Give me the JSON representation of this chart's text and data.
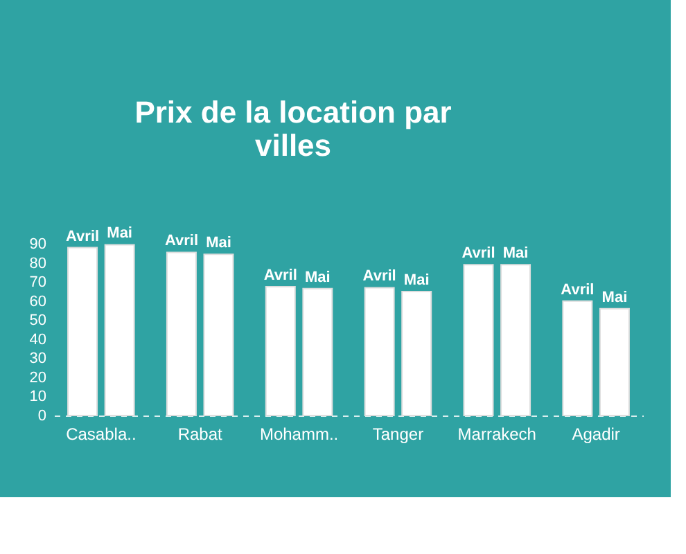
{
  "chart_data": {
    "type": "bar",
    "title": "Prix de la location par villes",
    "categories": [
      "Casabla..",
      "Rabat",
      "Mohamm..",
      "Tanger",
      "Marrakech",
      "Agadir"
    ],
    "series": [
      {
        "name": "Avril",
        "color": "#ffffff",
        "values": [
          88,
          85.5,
          67.5,
          67,
          79,
          60
        ]
      },
      {
        "name": "Mai",
        "color": "#ffffff",
        "values": [
          89.5,
          84.5,
          66.5,
          65,
          79,
          56
        ]
      }
    ],
    "ylim": [
      0,
      90
    ],
    "yticks": [
      0,
      10,
      20,
      30,
      40,
      50,
      60,
      70,
      80,
      90
    ],
    "grid": false,
    "legend": false
  }
}
